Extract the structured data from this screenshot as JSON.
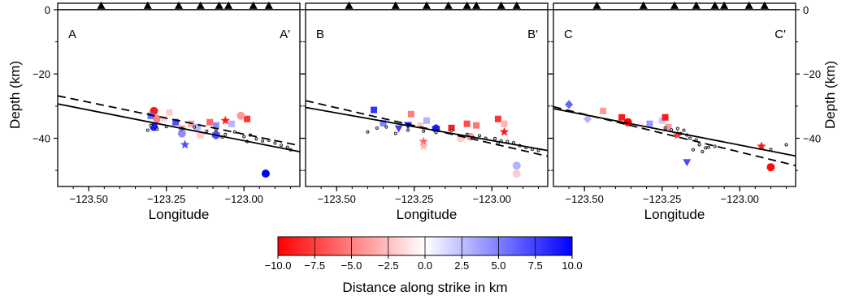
{
  "colors": {
    "neg": "#ff0000",
    "mid": "#ffffff",
    "pos": "#0000ff",
    "axis": "#000000"
  },
  "chart_data": [
    {
      "type": "scatter",
      "panel": "A",
      "corner_left": "A",
      "corner_right": "A'",
      "xlabel": "Longitude",
      "ylabel": "Depth (km)",
      "xlim": [
        -123.6,
        -122.82
      ],
      "ylim": [
        -55,
        2
      ],
      "xticks": [
        -123.5,
        -123.25,
        -123.0
      ],
      "xtick_labels": [
        "−123.50",
        "−123.25",
        "−123.00"
      ],
      "yticks": [
        0,
        -20,
        -40
      ],
      "ytick_labels": [
        "0",
        "−20",
        "−40"
      ],
      "stations_lon": [
        -123.46,
        -123.31,
        -123.21,
        -123.14,
        -123.08,
        -123.05,
        -122.97,
        -122.92
      ],
      "line_solid": [
        [
          -123.6,
          -29.3
        ],
        [
          -122.82,
          -44.2
        ]
      ],
      "line_dashed": [
        [
          -123.6,
          -26.8
        ],
        [
          -122.82,
          -42.3
        ]
      ],
      "small_events": [
        [
          -123.3,
          -36
        ],
        [
          -123.28,
          -37.2
        ],
        [
          -123.25,
          -36.4
        ],
        [
          -123.2,
          -37
        ],
        [
          -123.16,
          -36.5
        ],
        [
          -123.12,
          -37.8
        ],
        [
          -123.09,
          -37.4
        ],
        [
          -123.06,
          -38.8
        ],
        [
          -123.03,
          -38
        ],
        [
          -123.0,
          -39.5
        ],
        [
          -122.98,
          -39
        ],
        [
          -122.96,
          -40.2
        ],
        [
          -122.94,
          -40.8
        ],
        [
          -122.92,
          -40.6
        ],
        [
          -122.9,
          -41.5
        ],
        [
          -122.88,
          -42.2
        ],
        [
          -122.86,
          -42.8
        ],
        [
          -122.85,
          -43.6
        ],
        [
          -123.31,
          -37.5
        ],
        [
          -123.07,
          -39.6
        ],
        [
          -122.99,
          -41
        ]
      ],
      "events": [
        {
          "lon": -123.29,
          "depth": -31.5,
          "dist": -9,
          "sym": "circle"
        },
        {
          "lon": -123.28,
          "depth": -34,
          "dist": -5,
          "sym": "circle"
        },
        {
          "lon": -123.29,
          "depth": -36.5,
          "dist": 9,
          "sym": "circle"
        },
        {
          "lon": -123.3,
          "depth": -33,
          "dist": 6,
          "sym": "square"
        },
        {
          "lon": -123.26,
          "depth": -34,
          "dist": -1.5,
          "sym": "square"
        },
        {
          "lon": -123.24,
          "depth": -32,
          "dist": -2,
          "sym": "square"
        },
        {
          "lon": -123.22,
          "depth": -35,
          "dist": 7,
          "sym": "square"
        },
        {
          "lon": -123.2,
          "depth": -37,
          "dist": -4,
          "sym": "square"
        },
        {
          "lon": -123.17,
          "depth": -35.5,
          "dist": -3.5,
          "sym": "square"
        },
        {
          "lon": -123.15,
          "depth": -36.5,
          "dist": 3,
          "sym": "square"
        },
        {
          "lon": -123.11,
          "depth": -35,
          "dist": -6,
          "sym": "square"
        },
        {
          "lon": -123.09,
          "depth": -36,
          "dist": 4.5,
          "sym": "square"
        },
        {
          "lon": -123.04,
          "depth": -35.5,
          "dist": 3,
          "sym": "square"
        },
        {
          "lon": -122.99,
          "depth": -34,
          "dist": -8,
          "sym": "square"
        },
        {
          "lon": -123.2,
          "depth": -38.5,
          "dist": 4.5,
          "sym": "circle"
        },
        {
          "lon": -123.14,
          "depth": -39,
          "dist": -2,
          "sym": "circle"
        },
        {
          "lon": -123.09,
          "depth": -39,
          "dist": 7,
          "sym": "hexagon"
        },
        {
          "lon": -123.01,
          "depth": -33,
          "dist": -4,
          "sym": "circle"
        },
        {
          "lon": -123.06,
          "depth": -34.5,
          "dist": -9,
          "sym": "star"
        },
        {
          "lon": -123.19,
          "depth": -42,
          "dist": 7,
          "sym": "star"
        },
        {
          "lon": -122.93,
          "depth": -51,
          "dist": 10,
          "sym": "circle"
        }
      ]
    },
    {
      "type": "scatter",
      "panel": "B",
      "corner_left": "B",
      "corner_right": "B'",
      "xlabel": "Longitude",
      "ylabel": "",
      "xlim": [
        -123.6,
        -122.82
      ],
      "ylim": [
        -55,
        2
      ],
      "xticks": [
        -123.5,
        -123.25,
        -123.0
      ],
      "xtick_labels": [
        "−123.50",
        "−123.25",
        "−123.00"
      ],
      "yticks": [
        0,
        -20,
        -40
      ],
      "ytick_labels": [],
      "stations_lon": [
        -123.46,
        -123.31,
        -123.21,
        -123.14,
        -123.08,
        -123.05,
        -122.97,
        -122.92
      ],
      "line_solid": [
        [
          -123.6,
          -30.4
        ],
        [
          -122.82,
          -43.8
        ]
      ],
      "line_dashed": [
        [
          -123.6,
          -28.3
        ],
        [
          -122.82,
          -45.6
        ]
      ],
      "small_events": [
        [
          -123.4,
          -38
        ],
        [
          -123.34,
          -36.5
        ],
        [
          -123.31,
          -38.5
        ],
        [
          -123.27,
          -37.5
        ],
        [
          -123.22,
          -37.8
        ],
        [
          -123.18,
          -38.2
        ],
        [
          -123.13,
          -37.6
        ],
        [
          -123.08,
          -38.8
        ],
        [
          -123.04,
          -39.2
        ],
        [
          -123.02,
          -40
        ],
        [
          -122.99,
          -40.1
        ],
        [
          -122.97,
          -40.8
        ],
        [
          -122.95,
          -41
        ],
        [
          -122.93,
          -41.4
        ],
        [
          -122.91,
          -42.3
        ],
        [
          -122.89,
          -42.9
        ],
        [
          -122.87,
          -43.4
        ],
        [
          -122.85,
          -43.8
        ],
        [
          -123.37,
          -36.8
        ],
        [
          -123.06,
          -39.8
        ],
        [
          -122.98,
          -41.5
        ]
      ],
      "events": [
        {
          "lon": -123.38,
          "depth": -31.2,
          "dist": 8,
          "sym": "square"
        },
        {
          "lon": -123.35,
          "depth": -35.3,
          "dist": 5,
          "sym": "square"
        },
        {
          "lon": -123.3,
          "depth": -37,
          "dist": 7.5,
          "sym": "triangle-down"
        },
        {
          "lon": -123.27,
          "depth": -36,
          "dist": 9,
          "sym": "triangle-down"
        },
        {
          "lon": -123.26,
          "depth": -32.5,
          "dist": -5,
          "sym": "square"
        },
        {
          "lon": -123.23,
          "depth": -36,
          "dist": -2,
          "sym": "square"
        },
        {
          "lon": -123.21,
          "depth": -34.5,
          "dist": 3,
          "sym": "square"
        },
        {
          "lon": -123.18,
          "depth": -37,
          "dist": 9,
          "sym": "hexagon"
        },
        {
          "lon": -123.13,
          "depth": -36.8,
          "dist": -9,
          "sym": "square"
        },
        {
          "lon": -123.08,
          "depth": -35.5,
          "dist": -7,
          "sym": "square"
        },
        {
          "lon": -123.05,
          "depth": -36,
          "dist": -5.5,
          "sym": "square"
        },
        {
          "lon": -122.98,
          "depth": -34,
          "dist": -8,
          "sym": "square"
        },
        {
          "lon": -122.96,
          "depth": -35.5,
          "dist": -3,
          "sym": "square"
        },
        {
          "lon": -123.1,
          "depth": -40,
          "dist": -2,
          "sym": "hexagon"
        },
        {
          "lon": -123.07,
          "depth": -39.5,
          "dist": -4,
          "sym": "circle"
        },
        {
          "lon": -123.22,
          "depth": -41,
          "dist": -6,
          "sym": "star"
        },
        {
          "lon": -123.22,
          "depth": -42.5,
          "dist": -3,
          "sym": "star"
        },
        {
          "lon": -122.96,
          "depth": -38,
          "dist": -9,
          "sym": "star"
        },
        {
          "lon": -122.92,
          "depth": -48.5,
          "dist": 3,
          "sym": "circle"
        },
        {
          "lon": -122.92,
          "depth": -51,
          "dist": -2,
          "sym": "circle"
        }
      ]
    },
    {
      "type": "scatter",
      "panel": "C",
      "corner_left": "C",
      "corner_right": "C'",
      "xlabel": "Longitude",
      "ylabel": "Depth (km)",
      "xlim": [
        -123.6,
        -122.82
      ],
      "ylim": [
        -55,
        2
      ],
      "xticks": [
        -123.5,
        -123.25,
        -123.0
      ],
      "xtick_labels": [
        "−123.50",
        "−123.25",
        "−123.00"
      ],
      "yticks": [
        0,
        -20,
        -40
      ],
      "ytick_labels": [
        "0",
        "−20",
        "−40"
      ],
      "stations_lon": [
        -123.46,
        -123.31,
        -123.21,
        -123.14,
        -123.08,
        -123.05,
        -122.97,
        -122.92
      ],
      "line_solid": [
        [
          -123.6,
          -30.8
        ],
        [
          -122.82,
          -45.5
        ]
      ],
      "line_dashed": [
        [
          -123.6,
          -30.2
        ],
        [
          -122.82,
          -48.5
        ]
      ],
      "small_events": [
        [
          -123.24,
          -36.8
        ],
        [
          -123.22,
          -37.4
        ],
        [
          -123.2,
          -37
        ],
        [
          -123.18,
          -37.5
        ],
        [
          -123.19,
          -38.5
        ],
        [
          -123.17,
          -39
        ],
        [
          -123.16,
          -40
        ],
        [
          -123.14,
          -40.5
        ],
        [
          -123.13,
          -42
        ],
        [
          -123.11,
          -43
        ],
        [
          -123.1,
          -42.8
        ],
        [
          -123.15,
          -43.6
        ],
        [
          -123.12,
          -44.2
        ],
        [
          -123.08,
          -42.5
        ],
        [
          -122.9,
          -43.5
        ],
        [
          -122.85,
          -42
        ]
      ],
      "events": [
        {
          "lon": -123.55,
          "depth": -29.5,
          "dist": 6,
          "sym": "diamond"
        },
        {
          "lon": -123.49,
          "depth": -34,
          "dist": 3,
          "sym": "diamond"
        },
        {
          "lon": -123.44,
          "depth": -31.5,
          "dist": -4,
          "sym": "square"
        },
        {
          "lon": -123.38,
          "depth": -33.5,
          "dist": -9,
          "sym": "square"
        },
        {
          "lon": -123.36,
          "depth": -35,
          "dist": -10,
          "sym": "circle"
        },
        {
          "lon": -123.32,
          "depth": -36,
          "dist": -1,
          "sym": "square"
        },
        {
          "lon": -123.29,
          "depth": -35.5,
          "dist": 4,
          "sym": "square"
        },
        {
          "lon": -123.25,
          "depth": -34.5,
          "dist": 2,
          "sym": "square"
        },
        {
          "lon": -123.24,
          "depth": -33.5,
          "dist": -9,
          "sym": "square"
        },
        {
          "lon": -123.23,
          "depth": -36.5,
          "dist": -4,
          "sym": "square"
        },
        {
          "lon": -123.2,
          "depth": -39,
          "dist": -8,
          "sym": "star"
        },
        {
          "lon": -123.17,
          "depth": -47.5,
          "dist": 7,
          "sym": "triangle-down"
        },
        {
          "lon": -122.93,
          "depth": -42.5,
          "dist": -9,
          "sym": "star"
        },
        {
          "lon": -122.9,
          "depth": -49,
          "dist": -9.5,
          "sym": "circle"
        }
      ]
    }
  ],
  "colorbar": {
    "ticks": [
      -10,
      -7.5,
      -5,
      -2.5,
      0,
      2.5,
      5,
      7.5,
      10
    ],
    "tick_labels": [
      "−10.0",
      "−7.5",
      "−5.0",
      "−2.5",
      "0.0",
      "2.5",
      "5.0",
      "7.5",
      "10.0"
    ],
    "label": "Distance along strike in km"
  }
}
